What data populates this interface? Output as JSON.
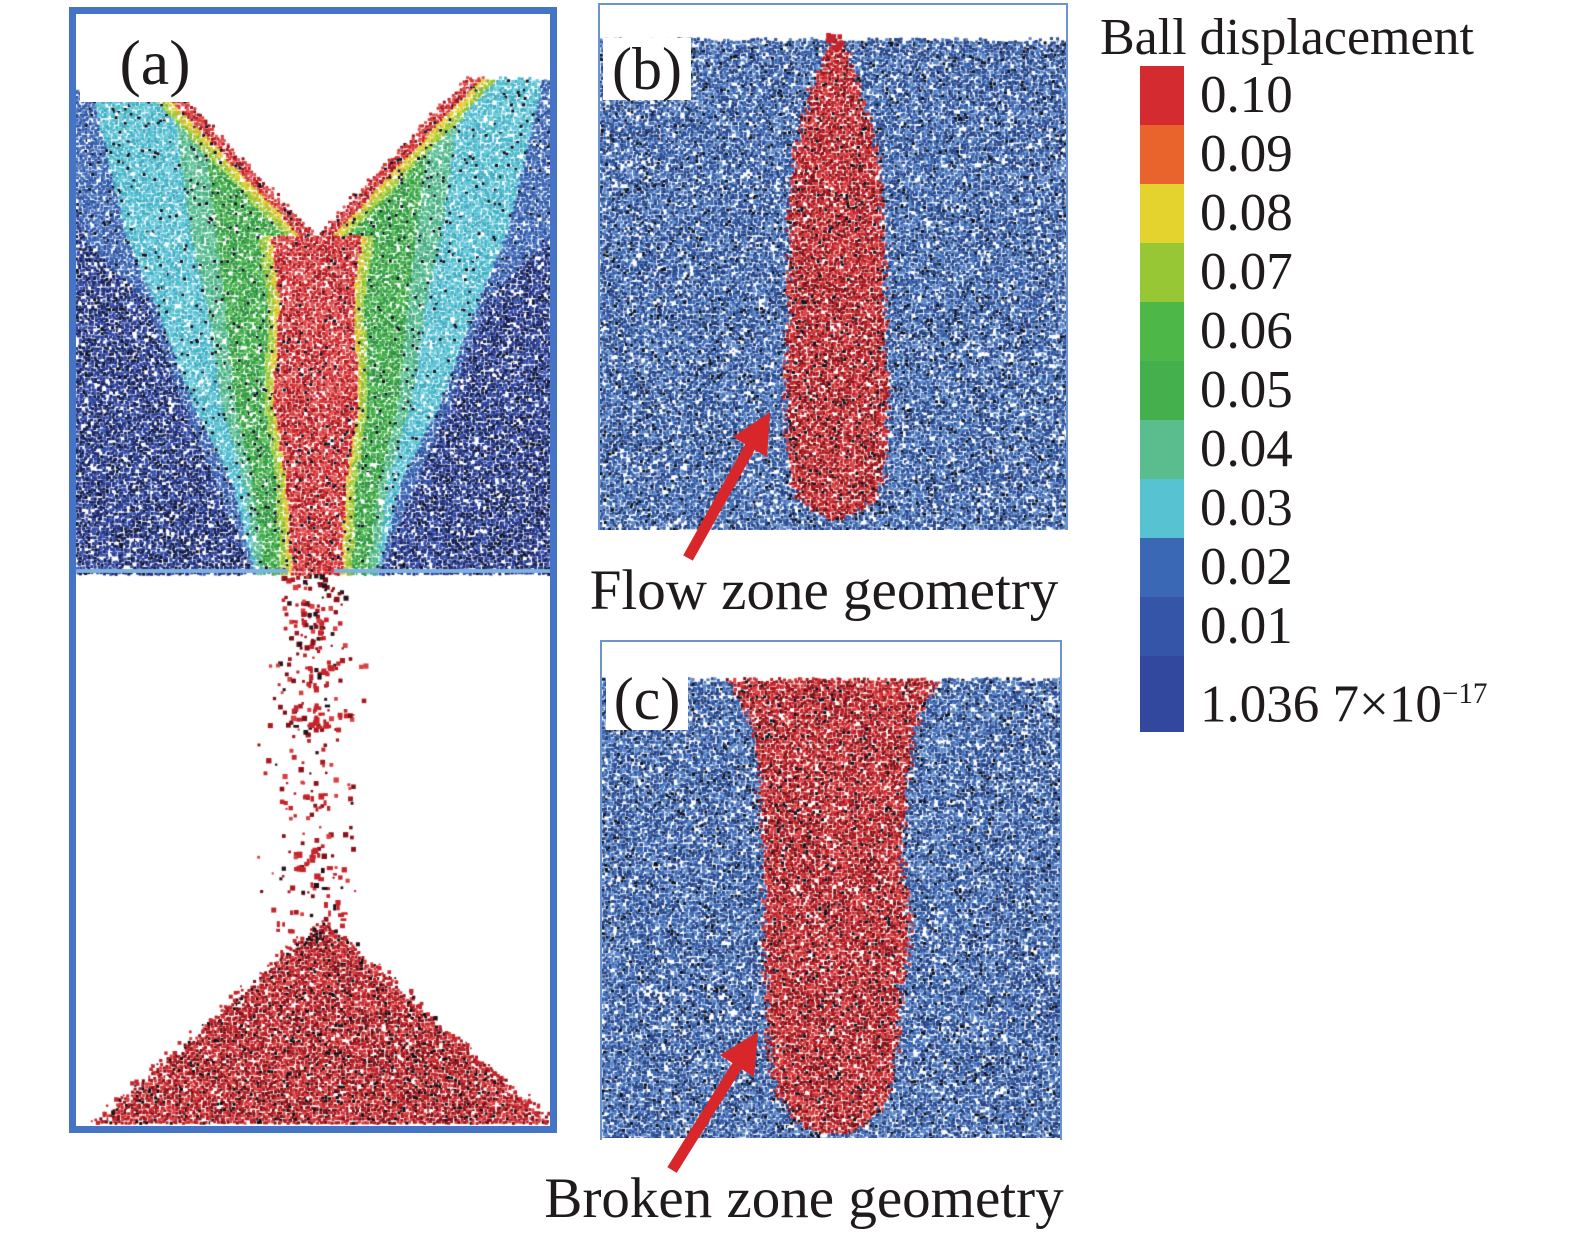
{
  "panels": {
    "a": {
      "label": "(a)"
    },
    "b": {
      "label": "(b)"
    },
    "c": {
      "label": "(c)"
    }
  },
  "annotations": {
    "flow": "Flow zone geometry",
    "broken": "Broken zone geometry"
  },
  "legend": {
    "title": "Ball displacement",
    "entries": [
      {
        "label": "0.10",
        "color": "#d32b30"
      },
      {
        "label": "0.09",
        "color": "#e8642c"
      },
      {
        "label": "0.08",
        "color": "#e4d32e"
      },
      {
        "label": "0.07",
        "color": "#97c735"
      },
      {
        "label": "0.06",
        "color": "#4db848"
      },
      {
        "label": "0.05",
        "color": "#44b04d"
      },
      {
        "label": "0.04",
        "color": "#5abd8d"
      },
      {
        "label": "0.03",
        "color": "#57c2d1"
      },
      {
        "label": "0.02",
        "color": "#3a68b4"
      },
      {
        "label": "0.01",
        "color": "#3556a8"
      },
      {
        "label": "1.036 7×10",
        "exponent": "−17",
        "color": "#32479e"
      }
    ]
  },
  "palette": {
    "panel_border": "#4573c5",
    "thin_border": "#6b94cf",
    "floor_line": "#7fb0e0",
    "arrow_red": "#d9262b",
    "text_black": "#1f1b1c",
    "zones": {
      "red": [
        "#cb2128",
        "#d93a3a",
        "#9c161d",
        "#e05555"
      ],
      "yellow": [
        "#ddd32f",
        "#e8c934",
        "#c9b92b"
      ],
      "ygreen": [
        "#9cc937",
        "#8abc33",
        "#aed442"
      ],
      "green": [
        "#41ae4b",
        "#33a045",
        "#56bb55",
        "#2f9140"
      ],
      "teal": [
        "#55bb8e",
        "#47ab80",
        "#68c89d"
      ],
      "cyan": [
        "#4fbdd0",
        "#3fadc2",
        "#6ccada"
      ],
      "blue": [
        "#3a64b2",
        "#2d53a2",
        "#4f7ac1"
      ],
      "navy": [
        "#2c3f97",
        "#202e75",
        "#3a53ae",
        "#16204f"
      ],
      "field_blue": [
        "#3a68b4",
        "#2b4f99",
        "#5d87c6",
        "#24407f"
      ],
      "field_red": [
        "#c6242b",
        "#a91920",
        "#d94040",
        "#7e1016"
      ]
    }
  }
}
